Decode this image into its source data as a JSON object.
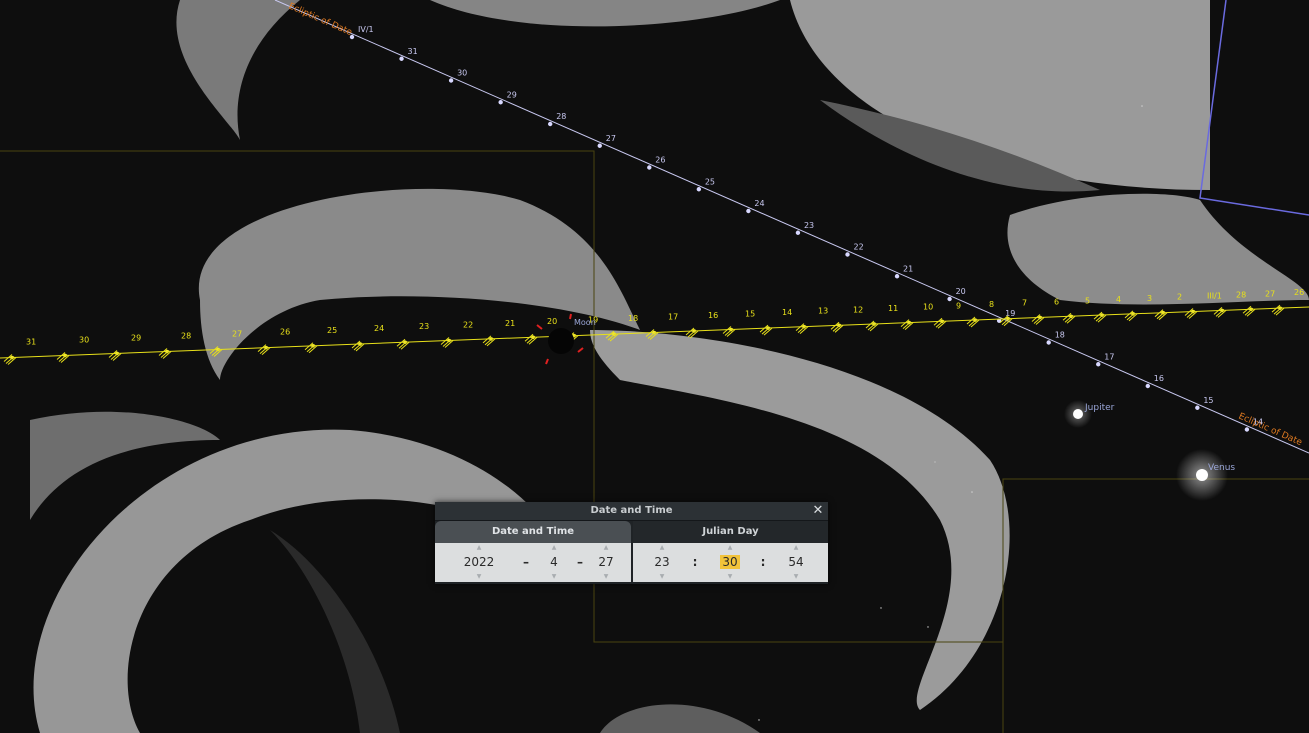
{
  "sky": {
    "ecliptic_label_top": "Ecliptic of Date",
    "ecliptic_label_bottom": "Ecliptic of Date",
    "ecliptic_ticks": [
      "IV/1",
      "31",
      "30",
      "29",
      "28",
      "27",
      "26",
      "25",
      "24",
      "23",
      "22",
      "21",
      "20",
      "19",
      "18",
      "17",
      "16",
      "15",
      "14"
    ],
    "moon_track_ticks": [
      "31",
      "30",
      "29",
      "28",
      "27",
      "26",
      "25",
      "24",
      "23",
      "22",
      "21",
      "20",
      "19",
      "18",
      "17",
      "16",
      "15",
      "14",
      "13",
      "12",
      "11",
      "10",
      "9",
      "8",
      "7",
      "6",
      "5",
      "4",
      "3",
      "2",
      "III/1",
      "28",
      "27",
      "26"
    ],
    "moon_label": "Moon",
    "jupiter_label": "Jupiter",
    "venus_label": "Venus"
  },
  "dialog": {
    "title": "Date and Time",
    "close_icon": "close-icon",
    "tabs": [
      {
        "label": "Date and Time",
        "active": true
      },
      {
        "label": "Julian Day",
        "active": false
      }
    ],
    "date": {
      "year": "2022",
      "month": "4",
      "day": "27",
      "separator": "–"
    },
    "time": {
      "hour": "23",
      "minute": "30",
      "second": "54",
      "separator": ":"
    }
  },
  "colors": {
    "ecliptic": "#c8c8f0",
    "ecliptic_label": "#e07a20",
    "moon_track": "#e8e01a",
    "boundary": "#4a4410",
    "constellation_line": "#6a6adf",
    "marker": "#e02020",
    "highlight": "#f2c33a"
  }
}
